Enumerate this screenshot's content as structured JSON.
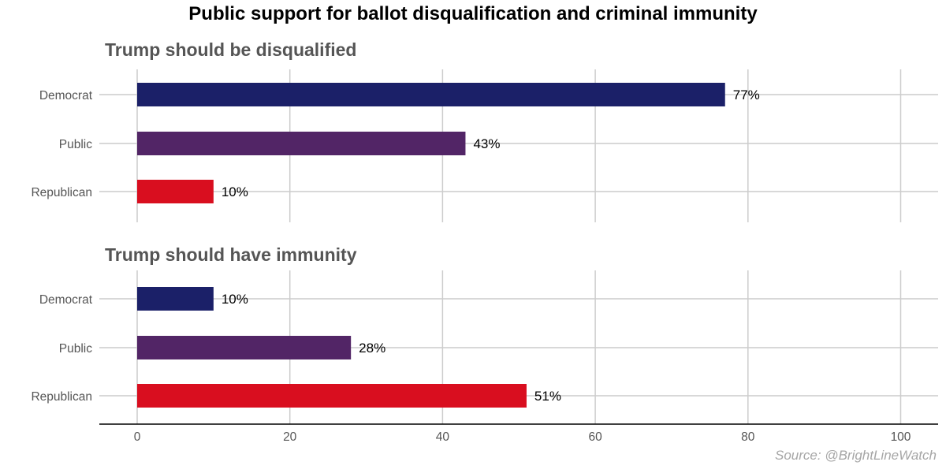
{
  "title": "Public support for ballot disqualification and criminal immunity",
  "source": "Source: @BrightLineWatch",
  "colors": {
    "Democrat": "#1b2068",
    "Public": "#522566",
    "Republican": "#d90e1f",
    "grid": "#cccccc",
    "tick_text": "#555555"
  },
  "chart_data": {
    "type": "bar",
    "orientation": "horizontal",
    "xlim": [
      0,
      100
    ],
    "x_ticks": [
      0,
      20,
      40,
      60,
      80,
      100
    ],
    "grid": true,
    "panels": [
      {
        "title": "Trump should be disqualified",
        "categories": [
          "Democrat",
          "Public",
          "Republican"
        ],
        "values": [
          77,
          43,
          10
        ],
        "labels": [
          "77%",
          "43%",
          "10%"
        ]
      },
      {
        "title": "Trump should have immunity",
        "categories": [
          "Democrat",
          "Public",
          "Republican"
        ],
        "values": [
          10,
          28,
          51
        ],
        "labels": [
          "10%",
          "28%",
          "51%"
        ]
      }
    ]
  }
}
